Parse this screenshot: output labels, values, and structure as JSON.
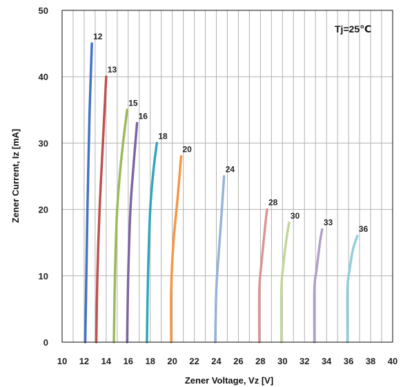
{
  "chart_data": {
    "type": "line",
    "title": "",
    "xlabel": "Zener Voltage, Vz [V]",
    "ylabel": "Zener Current, Iz [mA]",
    "xlim": [
      10,
      40
    ],
    "ylim": [
      0,
      50
    ],
    "x_ticks": [
      10,
      12,
      14,
      16,
      18,
      20,
      22,
      24,
      26,
      28,
      30,
      32,
      34,
      36,
      38,
      40
    ],
    "y_ticks": [
      0,
      10,
      20,
      30,
      40,
      50
    ],
    "x_tick_labels": [
      "10",
      "12",
      "14",
      "16",
      "18",
      "20",
      "22",
      "24",
      "26",
      "28",
      "30",
      "32",
      "34",
      "36",
      "38",
      "40"
    ],
    "y_tick_labels": [
      "0",
      "10",
      "20",
      "30",
      "40",
      "50"
    ],
    "grid": true,
    "annotation": "Tj=25℃",
    "series": [
      {
        "name": "12",
        "color": "#4472C4",
        "points": [
          [
            12.1,
            0
          ],
          [
            12.2,
            10
          ],
          [
            12.3,
            20
          ],
          [
            12.5,
            35
          ],
          [
            12.7,
            45
          ]
        ]
      },
      {
        "name": "13",
        "color": "#C0504D",
        "points": [
          [
            13.1,
            0
          ],
          [
            13.2,
            10
          ],
          [
            13.4,
            20
          ],
          [
            13.7,
            30
          ],
          [
            14.0,
            40
          ]
        ]
      },
      {
        "name": "15",
        "color": "#9BBB59",
        "points": [
          [
            14.7,
            0
          ],
          [
            14.8,
            10
          ],
          [
            15.0,
            20
          ],
          [
            15.4,
            28
          ],
          [
            15.9,
            35
          ]
        ]
      },
      {
        "name": "16",
        "color": "#8064A2",
        "points": [
          [
            15.9,
            0
          ],
          [
            16.0,
            10
          ],
          [
            16.2,
            20
          ],
          [
            16.5,
            27
          ],
          [
            16.8,
            33
          ]
        ]
      },
      {
        "name": "18",
        "color": "#31A6B7",
        "points": [
          [
            17.7,
            0
          ],
          [
            17.8,
            10
          ],
          [
            18.0,
            20
          ],
          [
            18.3,
            26
          ],
          [
            18.6,
            30
          ]
        ]
      },
      {
        "name": "20",
        "color": "#F79646",
        "points": [
          [
            19.9,
            0
          ],
          [
            19.9,
            8
          ],
          [
            20.1,
            15
          ],
          [
            20.5,
            22
          ],
          [
            20.8,
            28
          ]
        ]
      },
      {
        "name": "24",
        "color": "#95B3D7",
        "points": [
          [
            23.9,
            0
          ],
          [
            24.0,
            8
          ],
          [
            24.2,
            13
          ],
          [
            24.5,
            20
          ],
          [
            24.7,
            25
          ]
        ]
      },
      {
        "name": "28",
        "color": "#DA9694",
        "points": [
          [
            27.9,
            0
          ],
          [
            27.9,
            8
          ],
          [
            28.1,
            12
          ],
          [
            28.4,
            17
          ],
          [
            28.6,
            20
          ]
        ]
      },
      {
        "name": "30",
        "color": "#C3D69B",
        "points": [
          [
            29.9,
            0
          ],
          [
            29.9,
            8
          ],
          [
            30.1,
            12
          ],
          [
            30.4,
            16
          ],
          [
            30.6,
            18
          ]
        ]
      },
      {
        "name": "33",
        "color": "#B1A0C7",
        "points": [
          [
            32.9,
            0
          ],
          [
            32.9,
            8
          ],
          [
            33.1,
            11
          ],
          [
            33.4,
            15
          ],
          [
            33.6,
            17
          ]
        ]
      },
      {
        "name": "36",
        "color": "#92CDDC",
        "points": [
          [
            35.9,
            0
          ],
          [
            35.9,
            8
          ],
          [
            36.1,
            11
          ],
          [
            36.4,
            14
          ],
          [
            36.8,
            16
          ]
        ]
      }
    ]
  }
}
